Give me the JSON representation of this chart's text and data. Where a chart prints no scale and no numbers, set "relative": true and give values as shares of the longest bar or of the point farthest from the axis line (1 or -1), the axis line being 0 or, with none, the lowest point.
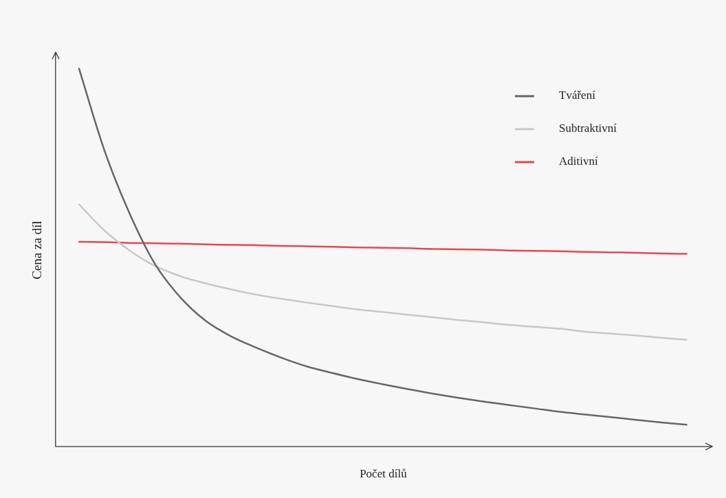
{
  "chart_data": {
    "type": "line",
    "xlabel": "Počet dílů",
    "ylabel": "Cena za díl",
    "relative": true,
    "grid": false,
    "legend": "top right",
    "marker": "none",
    "line_style": "solid",
    "categories": [
      null,
      null,
      null,
      null,
      null,
      null,
      null,
      null,
      null,
      null,
      null,
      null,
      null,
      null,
      null,
      null,
      null,
      null,
      null,
      null,
      null,
      null,
      null,
      null,
      null
    ],
    "series": [
      {
        "name": "Tváření",
        "color": "#666666",
        "values": [
          1.0,
          0.784,
          0.616,
          0.483,
          0.395,
          0.333,
          0.292,
          0.262,
          0.235,
          0.212,
          0.195,
          0.179,
          0.165,
          0.152,
          0.14,
          0.129,
          0.119,
          0.11,
          0.101,
          0.092,
          0.085,
          0.078,
          0.071,
          0.064,
          0.058
        ]
      },
      {
        "name": "Subtraktivní",
        "color": "#c8c8c8",
        "values": [
          0.641,
          0.572,
          0.519,
          0.478,
          0.451,
          0.432,
          0.416,
          0.402,
          0.391,
          0.381,
          0.372,
          0.363,
          0.356,
          0.349,
          0.342,
          0.335,
          0.329,
          0.322,
          0.317,
          0.312,
          0.304,
          0.299,
          0.294,
          0.288,
          0.283
        ]
      },
      {
        "name": "Aditivní",
        "color": "#e8474f",
        "values": [
          0.542,
          0.541,
          0.539,
          0.538,
          0.537,
          0.535,
          0.534,
          0.533,
          0.531,
          0.53,
          0.529,
          0.527,
          0.526,
          0.525,
          0.523,
          0.522,
          0.521,
          0.519,
          0.518,
          0.517,
          0.515,
          0.514,
          0.513,
          0.511,
          0.51
        ]
      }
    ]
  }
}
